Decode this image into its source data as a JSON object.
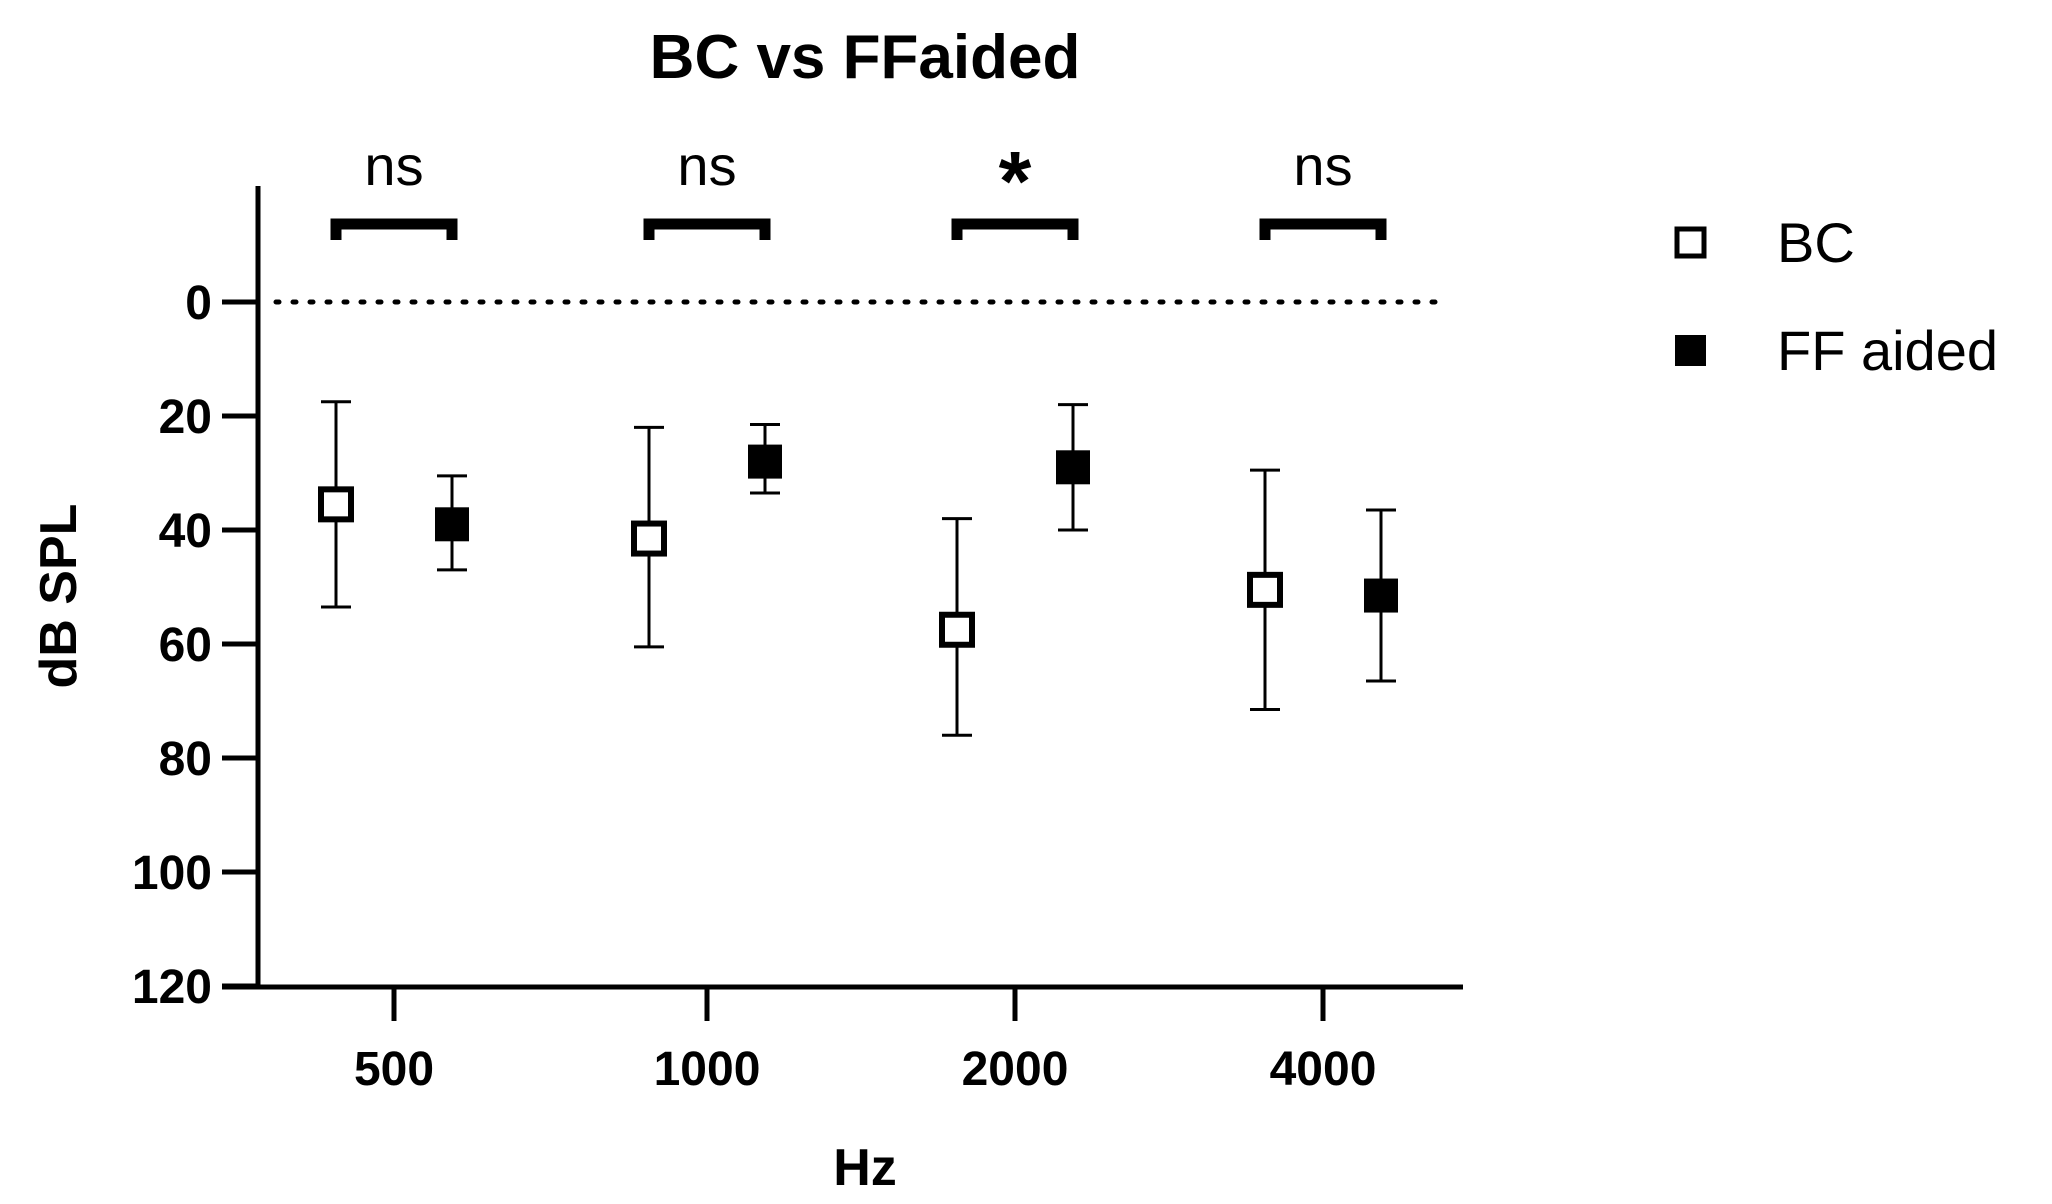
{
  "chart_data": {
    "type": "scatter",
    "title": "BC vs FFaided",
    "xlabel": "Hz",
    "ylabel": "dB SPL",
    "categories": [
      "500",
      "1000",
      "2000",
      "4000"
    ],
    "ylim": [
      120,
      -20
    ],
    "y_inverted": true,
    "yticks": [
      0,
      20,
      40,
      60,
      80,
      100,
      120
    ],
    "reference_line": {
      "y": 0,
      "style": "dotted"
    },
    "legend_position": "right",
    "grid": false,
    "series": [
      {
        "name": "BC",
        "marker": "open-square",
        "values": [
          35.5,
          41.5,
          57.5,
          50.5
        ],
        "error_low": [
          53.5,
          60.5,
          76,
          71.5
        ],
        "error_high": [
          17.5,
          22,
          38,
          29.5
        ]
      },
      {
        "name": "FF aided",
        "marker": "filled-square",
        "values": [
          39,
          28,
          29,
          51.5
        ],
        "error_low": [
          47,
          33.5,
          40,
          66.5
        ],
        "error_high": [
          30.5,
          21.5,
          18,
          36.5
        ]
      }
    ],
    "significance": [
      "ns",
      "ns",
      "*",
      "ns"
    ],
    "colors": {
      "marker": "#000000",
      "background": "#ffffff"
    }
  }
}
